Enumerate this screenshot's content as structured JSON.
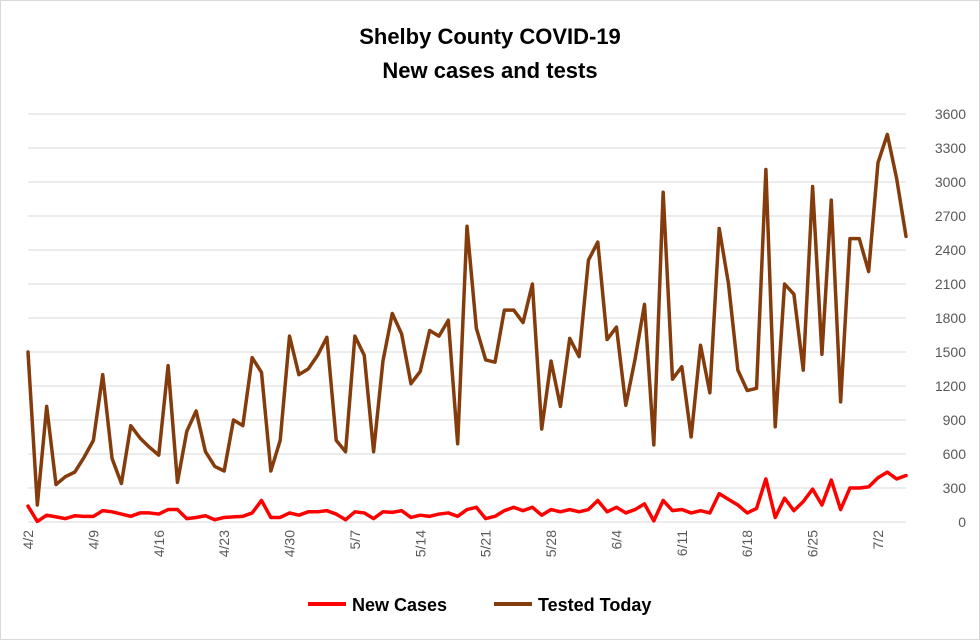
{
  "chart_data": {
    "type": "line",
    "title": "Shelby County COVID-19",
    "subtitle": "New cases and tests",
    "xlabel": "",
    "ylabel": "",
    "ylim": [
      0,
      3600
    ],
    "y_ticks": [
      "0",
      "300",
      "600",
      "900",
      "1200",
      "1500",
      "1800",
      "2100",
      "2400",
      "2700",
      "3000",
      "3300",
      "3600"
    ],
    "x_tick_labels": [
      "4/2",
      "4/9",
      "4/16",
      "4/23",
      "4/30",
      "5/7",
      "5/14",
      "5/21",
      "5/28",
      "6/4",
      "6/11",
      "6/18",
      "6/25",
      "7/2"
    ],
    "x_tick_every": 7,
    "grid": true,
    "legend_position": "bottom",
    "series": [
      {
        "name": "New Cases",
        "color": "#ff0000",
        "values": [
          140,
          5,
          60,
          45,
          30,
          55,
          50,
          50,
          100,
          90,
          70,
          50,
          80,
          80,
          70,
          110,
          110,
          30,
          40,
          55,
          20,
          40,
          45,
          50,
          80,
          190,
          40,
          40,
          80,
          60,
          90,
          90,
          100,
          70,
          20,
          90,
          80,
          30,
          90,
          85,
          100,
          40,
          60,
          50,
          70,
          80,
          50,
          110,
          130,
          30,
          50,
          100,
          130,
          100,
          130,
          60,
          110,
          90,
          110,
          90,
          110,
          190,
          90,
          130,
          80,
          110,
          160,
          10,
          190,
          100,
          110,
          80,
          100,
          80,
          250,
          200,
          150,
          80,
          120,
          380,
          40,
          210,
          100,
          180,
          290,
          150,
          370,
          110,
          300,
          300,
          310,
          390,
          440,
          380,
          410
        ]
      },
      {
        "name": "Tested Today",
        "color": "#843c0c",
        "values": [
          1500,
          150,
          1020,
          330,
          400,
          440,
          570,
          720,
          1300,
          560,
          340,
          850,
          740,
          660,
          590,
          1380,
          350,
          800,
          980,
          620,
          490,
          450,
          900,
          850,
          1450,
          1320,
          450,
          720,
          1640,
          1300,
          1350,
          1470,
          1630,
          720,
          620,
          1640,
          1470,
          620,
          1420,
          1840,
          1660,
          1220,
          1330,
          1690,
          1640,
          1780,
          690,
          2610,
          1710,
          1430,
          1410,
          1870,
          1870,
          1760,
          2100,
          820,
          1420,
          1020,
          1620,
          1460,
          2310,
          2470,
          1610,
          1720,
          1030,
          1440,
          1920,
          680,
          2910,
          1260,
          1370,
          750,
          1560,
          1140,
          2590,
          2100,
          1340,
          1160,
          1180,
          3110,
          840,
          2100,
          2010,
          1340,
          2960,
          1480,
          2840,
          1060,
          2500,
          2500,
          2210,
          3170,
          3420,
          3030,
          2520
        ]
      }
    ]
  }
}
